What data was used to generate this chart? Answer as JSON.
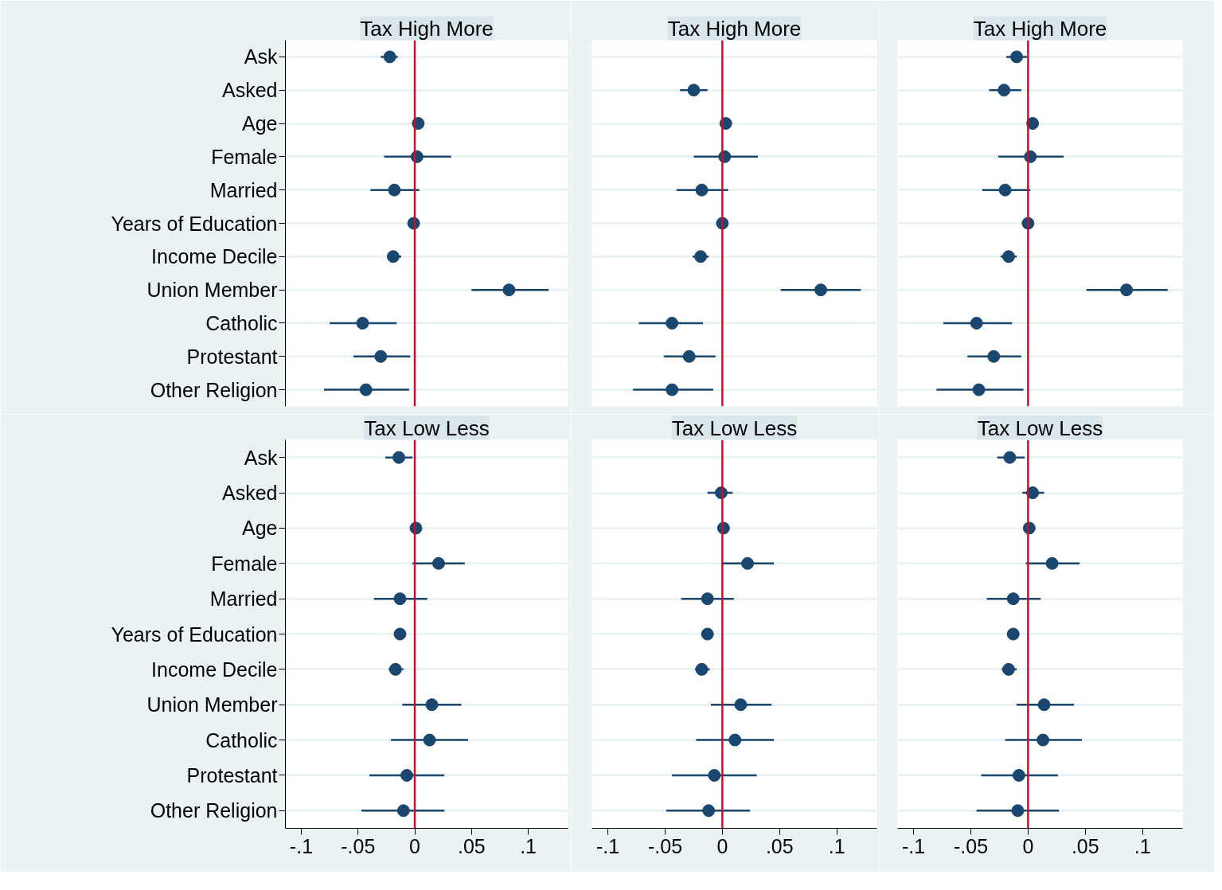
{
  "chart_data": [
    {
      "type": "scatter",
      "orientation": "horizontal",
      "title": "Tax High More",
      "categories": [
        "Ask",
        "Asked",
        "Age",
        "Female",
        "Married",
        "Years of Education",
        "Income Decile",
        "Union Member",
        "Catholic",
        "Protestant",
        "Other Religion"
      ],
      "color": "#1a476f",
      "marker": "circle",
      "grid": "y",
      "tick_labels": "y",
      "xlim": [
        -0.114,
        0.135
      ],
      "ref_lines": [
        {
          "axis": "x",
          "value": 0,
          "color": "#c8102e"
        }
      ],
      "values": [
        -0.022,
        null,
        0.003,
        0.002,
        -0.018,
        -0.001,
        -0.019,
        0.083,
        -0.046,
        -0.03,
        -0.043
      ],
      "errors": [
        [
          -0.03,
          -0.015
        ],
        null,
        null,
        [
          -0.027,
          0.032
        ],
        [
          -0.039,
          0.004
        ],
        null,
        [
          -0.024,
          -0.012
        ],
        [
          0.05,
          0.118
        ],
        [
          -0.075,
          -0.016
        ],
        [
          -0.054,
          -0.004
        ],
        [
          -0.08,
          -0.005
        ]
      ]
    },
    {
      "type": "scatter",
      "orientation": "horizontal",
      "title": "Tax High More",
      "categories": [
        null,
        null,
        null,
        null,
        null,
        null,
        null,
        null,
        null,
        null,
        null
      ],
      "color": "#1a476f",
      "marker": "circle",
      "grid": "y",
      "tick_labels": false,
      "xlim": [
        -0.114,
        0.135
      ],
      "ref_lines": [
        {
          "axis": "x",
          "value": 0,
          "color": "#c8102e"
        }
      ],
      "values": [
        null,
        -0.025,
        0.003,
        0.002,
        -0.018,
        0.0,
        -0.019,
        0.086,
        -0.044,
        -0.029,
        -0.044
      ],
      "errors": [
        null,
        [
          -0.037,
          -0.013
        ],
        null,
        [
          -0.025,
          0.031
        ],
        [
          -0.04,
          0.005
        ],
        null,
        [
          -0.026,
          -0.012
        ],
        [
          0.051,
          0.121
        ],
        [
          -0.073,
          -0.017
        ],
        [
          -0.051,
          -0.006
        ],
        [
          -0.078,
          -0.008
        ]
      ]
    },
    {
      "type": "scatter",
      "orientation": "horizontal",
      "title": "Tax High More",
      "categories": [
        null,
        null,
        null,
        null,
        null,
        null,
        null,
        null,
        null,
        null,
        null
      ],
      "color": "#1a476f",
      "marker": "circle",
      "grid": "y",
      "tick_labels": false,
      "xlim": [
        -0.114,
        0.135
      ],
      "ref_lines": [
        {
          "axis": "x",
          "value": 0,
          "color": "#c8102e"
        }
      ],
      "values": [
        -0.01,
        -0.021,
        0.004,
        0.002,
        -0.02,
        0.0,
        -0.017,
        0.086,
        -0.045,
        -0.03,
        -0.043
      ],
      "errors": [
        [
          -0.019,
          -0.001
        ],
        [
          -0.034,
          -0.006
        ],
        null,
        [
          -0.026,
          0.031
        ],
        [
          -0.04,
          0.002
        ],
        null,
        [
          -0.024,
          -0.01
        ],
        [
          0.051,
          0.122
        ],
        [
          -0.074,
          -0.014
        ],
        [
          -0.053,
          -0.006
        ],
        [
          -0.08,
          -0.004
        ]
      ]
    },
    {
      "type": "scatter",
      "orientation": "horizontal",
      "title": "Tax Low Less",
      "categories": [
        "Ask",
        "Asked",
        "Age",
        "Female",
        "Married",
        "Years of Education",
        "Income Decile",
        "Union Member",
        "Catholic",
        "Protestant",
        "Other Religion"
      ],
      "color": "#1a476f",
      "marker": "circle",
      "grid": "y",
      "xlim": [
        -0.114,
        0.135
      ],
      "xticks": [
        {
          "value": -0.1,
          "label": "-.1"
        },
        {
          "value": -0.05,
          "label": "-.05"
        },
        0,
        {
          "value": 0.05,
          "label": ".05"
        },
        {
          "value": 0.1,
          "label": ".1"
        }
      ],
      "ref_lines": [
        {
          "axis": "x",
          "value": 0,
          "color": "#c8102e"
        }
      ],
      "values": [
        -0.014,
        null,
        0.001,
        0.021,
        -0.013,
        -0.013,
        -0.017,
        0.015,
        0.013,
        -0.007,
        -0.01
      ],
      "errors": [
        [
          -0.026,
          -0.002
        ],
        null,
        null,
        [
          -0.002,
          0.044
        ],
        [
          -0.036,
          0.011
        ],
        null,
        [
          -0.023,
          -0.01
        ],
        [
          -0.011,
          0.041
        ],
        [
          -0.021,
          0.047
        ],
        [
          -0.04,
          0.026
        ],
        [
          -0.047,
          0.026
        ]
      ]
    },
    {
      "type": "scatter",
      "orientation": "horizontal",
      "title": "Tax Low Less",
      "categories": [
        null,
        null,
        null,
        null,
        null,
        null,
        null,
        null,
        null,
        null,
        null
      ],
      "color": "#1a476f",
      "marker": "circle",
      "grid": "y",
      "tick_labels": "x",
      "xlim": [
        -0.114,
        0.135
      ],
      "xticks": [
        {
          "value": -0.1,
          "label": "-.1"
        },
        {
          "value": -0.05,
          "label": "-.05"
        },
        0,
        {
          "value": 0.05,
          "label": ".05"
        },
        {
          "value": 0.1,
          "label": ".1"
        }
      ],
      "ref_lines": [
        {
          "axis": "x",
          "value": 0,
          "color": "#c8102e"
        }
      ],
      "values": [
        null,
        -0.001,
        0.001,
        0.022,
        -0.013,
        -0.013,
        -0.018,
        0.016,
        0.011,
        -0.007,
        -0.012
      ],
      "errors": [
        null,
        [
          -0.013,
          0.009
        ],
        null,
        [
          -0.001,
          0.045
        ],
        [
          -0.036,
          0.01
        ],
        null,
        [
          -0.024,
          -0.011
        ],
        [
          -0.01,
          0.043
        ],
        [
          -0.023,
          0.045
        ],
        [
          -0.044,
          0.03
        ],
        [
          -0.049,
          0.024
        ]
      ]
    },
    {
      "type": "scatter",
      "orientation": "horizontal",
      "title": "Tax Low Less",
      "categories": [
        null,
        null,
        null,
        null,
        null,
        null,
        null,
        null,
        null,
        null,
        null
      ],
      "color": "#1a476f",
      "marker": "circle",
      "grid": "y",
      "tick_labels": "x",
      "xlim": [
        -0.114,
        0.135
      ],
      "xticks": [
        {
          "value": -0.1,
          "label": "-.1"
        },
        {
          "value": -0.05,
          "label": "-.05"
        },
        0,
        {
          "value": 0.05,
          "label": ".05"
        },
        {
          "value": 0.1,
          "label": ".1"
        }
      ],
      "ref_lines": [
        {
          "axis": "x",
          "value": 0,
          "color": "#c8102e"
        }
      ],
      "values": [
        -0.016,
        0.004,
        0.001,
        0.021,
        -0.013,
        -0.013,
        -0.017,
        0.014,
        0.013,
        -0.008,
        -0.009
      ],
      "errors": [
        [
          -0.027,
          -0.003
        ],
        [
          -0.005,
          0.014
        ],
        null,
        [
          -0.002,
          0.045
        ],
        [
          -0.036,
          0.011
        ],
        null,
        [
          -0.023,
          -0.01
        ],
        [
          -0.01,
          0.04
        ],
        [
          -0.02,
          0.047
        ],
        [
          -0.041,
          0.026
        ],
        [
          -0.045,
          0.027
        ]
      ]
    }
  ]
}
